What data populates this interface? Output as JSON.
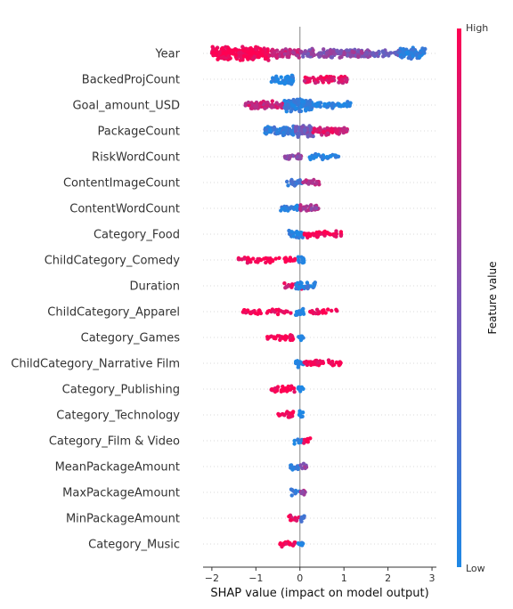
{
  "colors": {
    "high": "#ff0052",
    "low": "#1e88e5",
    "zero_line": "#999999",
    "grid": "#cccccc",
    "axis": "#333333"
  },
  "chart_data": {
    "type": "scatter",
    "subtype": "shap-beeswarm",
    "xlabel": "SHAP value (impact on model output)",
    "xlim": [
      -2.2,
      3.1
    ],
    "xticks": [
      -2,
      -1,
      0,
      1,
      2,
      3
    ],
    "colorbar": {
      "title": "Feature value",
      "high_label": "High",
      "low_label": "Low"
    },
    "features": [
      {
        "name": "Year",
        "segments": [
          {
            "from": -2.0,
            "to": -0.7,
            "density": 3.0,
            "value": 1.0
          },
          {
            "from": -0.7,
            "to": 0.0,
            "density": 1.6,
            "value": 0.78
          },
          {
            "from": 0.0,
            "to": 1.6,
            "density": 1.6,
            "value": 0.55
          },
          {
            "from": 1.6,
            "to": 2.25,
            "density": 0.8,
            "value": 0.4
          },
          {
            "from": 2.25,
            "to": 2.85,
            "density": 2.2,
            "value": 0.08
          }
        ]
      },
      {
        "name": "BackedProjCount",
        "segments": [
          {
            "from": -0.65,
            "to": -0.15,
            "density": 1.4,
            "value": 0.0
          },
          {
            "from": -0.35,
            "to": -0.15,
            "density": 2.2,
            "value": 0.05
          },
          {
            "from": 0.1,
            "to": 1.1,
            "density": 1.2,
            "value": 0.88
          }
        ]
      },
      {
        "name": "Goal_amount_USD",
        "segments": [
          {
            "from": -1.25,
            "to": -0.35,
            "density": 1.4,
            "value": 0.8
          },
          {
            "from": -0.35,
            "to": 0.3,
            "density": 2.8,
            "value": 0.08
          },
          {
            "from": 0.3,
            "to": 1.15,
            "density": 1.0,
            "value": 0.02
          }
        ]
      },
      {
        "name": "PackageCount",
        "segments": [
          {
            "from": -0.8,
            "to": -0.1,
            "density": 1.6,
            "value": 0.12
          },
          {
            "from": -0.1,
            "to": 0.3,
            "density": 2.8,
            "value": 0.45
          },
          {
            "from": 0.3,
            "to": 1.1,
            "density": 1.4,
            "value": 0.85
          }
        ]
      },
      {
        "name": "RiskWordCount",
        "segments": [
          {
            "from": -0.35,
            "to": 0.05,
            "density": 1.0,
            "value": 0.6
          },
          {
            "from": 0.2,
            "to": 0.9,
            "density": 0.8,
            "value": 0.02
          }
        ]
      },
      {
        "name": "ContentImageCount",
        "segments": [
          {
            "from": -0.3,
            "to": 0.05,
            "density": 1.0,
            "value": 0.15
          },
          {
            "from": 0.05,
            "to": 0.45,
            "density": 1.0,
            "value": 0.75
          }
        ]
      },
      {
        "name": "ContentWordCount",
        "segments": [
          {
            "from": -0.45,
            "to": 0.0,
            "density": 1.0,
            "value": 0.1
          },
          {
            "from": 0.0,
            "to": 0.45,
            "density": 1.2,
            "value": 0.65
          }
        ]
      },
      {
        "name": "Category_Food",
        "segments": [
          {
            "from": -0.25,
            "to": 0.1,
            "density": 1.2,
            "value": 0.05
          },
          {
            "from": 0.1,
            "to": 0.95,
            "density": 1.0,
            "value": 1.0
          }
        ]
      },
      {
        "name": "ChildCategory_Comedy",
        "segments": [
          {
            "from": -1.4,
            "to": -0.1,
            "density": 0.7,
            "value": 1.0
          },
          {
            "from": -0.05,
            "to": 0.1,
            "density": 1.2,
            "value": 0.0
          }
        ]
      },
      {
        "name": "Duration",
        "segments": [
          {
            "from": -0.4,
            "to": 0.05,
            "density": 0.8,
            "value": 0.85
          },
          {
            "from": -0.1,
            "to": 0.35,
            "density": 1.0,
            "value": 0.1
          }
        ]
      },
      {
        "name": "ChildCategory_Apparel",
        "segments": [
          {
            "from": -1.3,
            "to": -0.2,
            "density": 0.6,
            "value": 1.0
          },
          {
            "from": -0.1,
            "to": 0.1,
            "density": 1.2,
            "value": 0.0
          },
          {
            "from": 0.2,
            "to": 0.85,
            "density": 0.6,
            "value": 1.0
          }
        ]
      },
      {
        "name": "Category_Games",
        "segments": [
          {
            "from": -0.75,
            "to": -0.1,
            "density": 0.8,
            "value": 1.0
          },
          {
            "from": -0.05,
            "to": 0.08,
            "density": 1.2,
            "value": 0.0
          }
        ]
      },
      {
        "name": "ChildCategory_Narrative Film",
        "segments": [
          {
            "from": -0.1,
            "to": 0.08,
            "density": 1.2,
            "value": 0.0
          },
          {
            "from": 0.1,
            "to": 1.0,
            "density": 0.8,
            "value": 1.0
          }
        ]
      },
      {
        "name": "Category_Publishing",
        "segments": [
          {
            "from": -0.65,
            "to": -0.1,
            "density": 0.8,
            "value": 1.0
          },
          {
            "from": -0.05,
            "to": 0.08,
            "density": 1.2,
            "value": 0.0
          }
        ]
      },
      {
        "name": "Category_Technology",
        "segments": [
          {
            "from": -0.5,
            "to": -0.1,
            "density": 0.8,
            "value": 1.0
          },
          {
            "from": -0.05,
            "to": 0.08,
            "density": 1.2,
            "value": 0.0
          }
        ]
      },
      {
        "name": "Category_Film & Video",
        "segments": [
          {
            "from": -0.15,
            "to": 0.08,
            "density": 1.0,
            "value": 0.05
          },
          {
            "from": 0.08,
            "to": 0.3,
            "density": 0.8,
            "value": 1.0
          }
        ]
      },
      {
        "name": "MeanPackageAmount",
        "segments": [
          {
            "from": -0.25,
            "to": 0.0,
            "density": 0.8,
            "value": 0.15
          },
          {
            "from": 0.0,
            "to": 0.15,
            "density": 1.0,
            "value": 0.6
          }
        ]
      },
      {
        "name": "MaxPackageAmount",
        "segments": [
          {
            "from": -0.2,
            "to": 0.0,
            "density": 0.8,
            "value": 0.15
          },
          {
            "from": 0.0,
            "to": 0.12,
            "density": 1.0,
            "value": 0.65
          }
        ]
      },
      {
        "name": "MinPackageAmount",
        "segments": [
          {
            "from": -0.25,
            "to": 0.0,
            "density": 0.8,
            "value": 0.9
          },
          {
            "from": 0.0,
            "to": 0.12,
            "density": 1.0,
            "value": 0.2
          }
        ]
      },
      {
        "name": "Category_Music",
        "segments": [
          {
            "from": -0.5,
            "to": -0.1,
            "density": 0.8,
            "value": 1.0
          },
          {
            "from": -0.05,
            "to": 0.08,
            "density": 1.2,
            "value": 0.0
          }
        ]
      }
    ]
  }
}
